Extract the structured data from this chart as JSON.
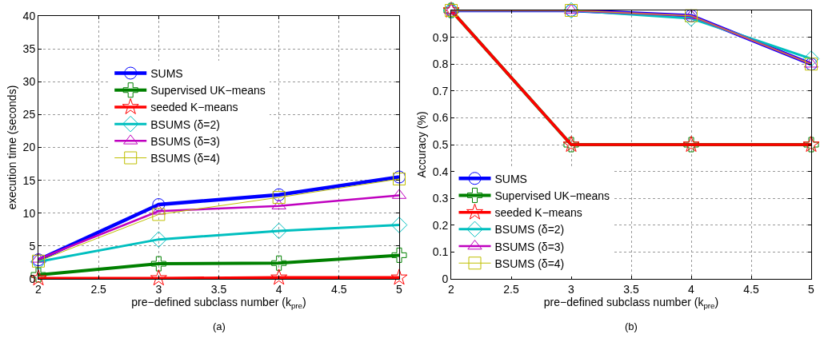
{
  "chart_data": [
    {
      "type": "line",
      "xlabel": "pre−defined subclass number (k$_{pre}$)",
      "ylabel": "execution time (seconds)",
      "annotations": [
        "(a)"
      ],
      "x": [
        2,
        3,
        4,
        5
      ],
      "xlim": [
        2,
        5
      ],
      "xticks": [
        2,
        2.5,
        3,
        3.5,
        4,
        4.5,
        5
      ],
      "ylim": [
        0,
        40
      ],
      "yticks": [
        0,
        5,
        10,
        15,
        20,
        25,
        30,
        35,
        40
      ],
      "grid": true,
      "legend": "top",
      "line_style": "solid",
      "series": [
        {
          "name": "SUMS",
          "color": "#0000ff",
          "marker": "circle",
          "values": [
            2.9,
            11.3,
            12.8,
            15.5
          ]
        },
        {
          "name": "Supervised UK−means",
          "color": "#008000",
          "marker": "cross",
          "values": [
            0.6,
            2.3,
            2.4,
            3.6
          ]
        },
        {
          "name": "seeded K−means",
          "color": "#ff0000",
          "marker": "star",
          "values": [
            0.1,
            0.1,
            0.2,
            0.2
          ]
        },
        {
          "name": "BSUMS (δ=2)",
          "color": "#00bfbf",
          "marker": "diamond",
          "values": [
            2.6,
            6.0,
            7.3,
            8.2
          ]
        },
        {
          "name": "BSUMS (δ=3)",
          "color": "#bf00bf",
          "marker": "triangle",
          "values": [
            3.0,
            10.3,
            11.1,
            12.7
          ]
        },
        {
          "name": "BSUMS (δ=4)",
          "color": "#bfbf00",
          "marker": "square",
          "values": [
            2.7,
            9.8,
            12.4,
            15.2
          ]
        }
      ]
    },
    {
      "type": "line",
      "xlabel": "pre−defined subclass number (k$_{pre}$)",
      "ylabel": "Accuracy (%)",
      "annotations": [
        "(b)"
      ],
      "x": [
        2,
        3,
        4,
        5
      ],
      "xlim": [
        2,
        5
      ],
      "xticks": [
        2,
        2.5,
        3,
        3.5,
        4,
        4.5,
        5
      ],
      "ylim": [
        0,
        1
      ],
      "yticks": [
        0,
        0.1,
        0.2,
        0.3,
        0.4,
        0.5,
        0.6,
        0.7,
        0.8,
        0.9
      ],
      "grid": true,
      "legend": "bottom left",
      "line_style": "solid",
      "series": [
        {
          "name": "SUMS",
          "color": "#0000ff",
          "marker": "circle",
          "values": [
            1,
            1,
            0.98,
            0.8
          ]
        },
        {
          "name": "Supervised UK−means",
          "color": "#008000",
          "marker": "cross",
          "values": [
            1,
            0.5,
            0.5,
            0.5
          ]
        },
        {
          "name": "seeded K−means",
          "color": "#ff0000",
          "marker": "star",
          "values": [
            1,
            0.5,
            0.5,
            0.5
          ]
        },
        {
          "name": "BSUMS (δ=2)",
          "color": "#00bfbf",
          "marker": "diamond",
          "values": [
            1,
            1,
            0.97,
            0.82
          ]
        },
        {
          "name": "BSUMS (δ=3)",
          "color": "#bf00bf",
          "marker": "triangle",
          "values": [
            1,
            1,
            0.98,
            0.8
          ]
        },
        {
          "name": "BSUMS (δ=4)",
          "color": "#bfbf00",
          "marker": "square",
          "values": [
            1,
            1,
            0.98,
            0.8
          ]
        }
      ]
    }
  ]
}
